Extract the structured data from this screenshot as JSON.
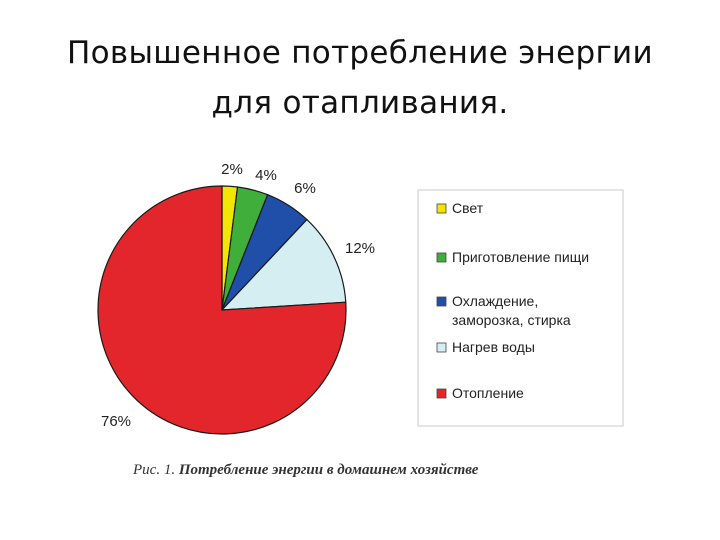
{
  "title": {
    "line1": "Повышенное потребление энергии",
    "line2": "для отапливания."
  },
  "caption": {
    "label": "Рис. 1.",
    "text": "Потребление энергии в домашнем хозяйстве"
  },
  "chart_data": {
    "type": "pie",
    "start_angle_deg": 0,
    "direction": "clockwise",
    "slices": [
      {
        "label": "Свет",
        "value": 2,
        "value_label": "2%",
        "color": "#f2e500"
      },
      {
        "label": "Приготовление пищи",
        "value": 4,
        "value_label": "4%",
        "color": "#3fae3a"
      },
      {
        "label": "Охлаждение,|заморозка, стирка",
        "value": 6,
        "value_label": "6%",
        "color": "#1f4fa8"
      },
      {
        "label": "Нагрев воды",
        "value": 12,
        "value_label": "12%",
        "color": "#d4eef2"
      },
      {
        "label": "Отопление",
        "value": 76,
        "value_label": "76%",
        "color": "#e3262b"
      }
    ],
    "legend_placement": "right"
  }
}
